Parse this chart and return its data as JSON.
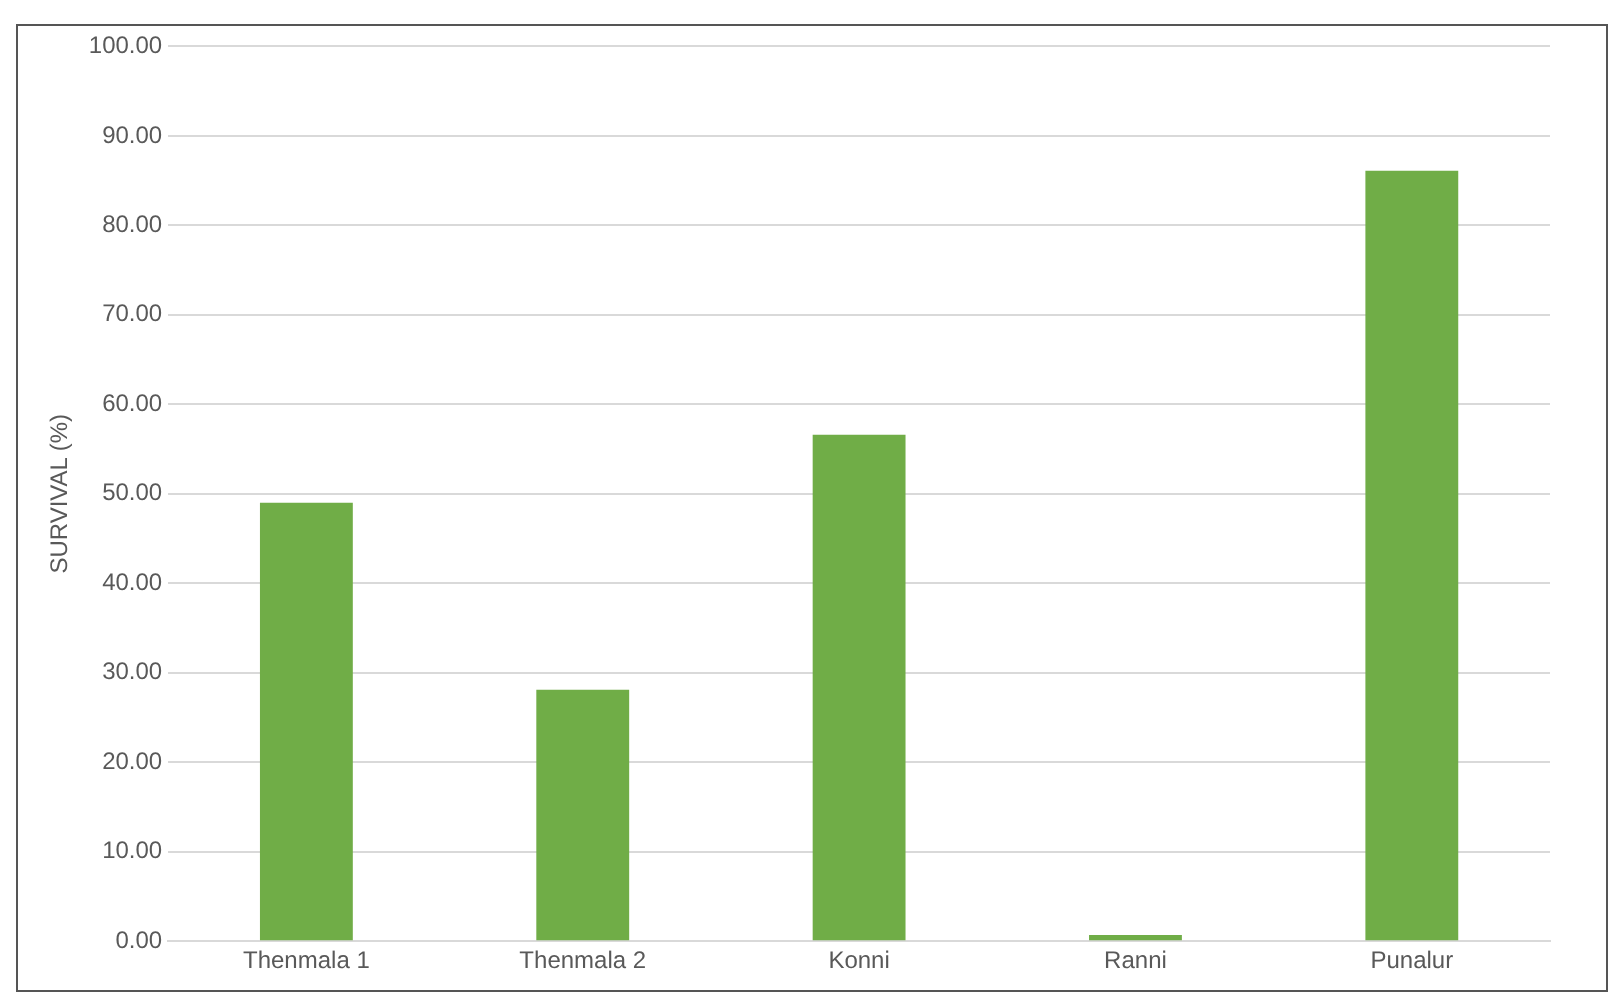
{
  "chart_data": {
    "type": "bar",
    "ylabel": "SURVIVAL (%)",
    "categories": [
      "Thenmala 1",
      "Thenmala 2",
      "Konni",
      "Ranni",
      "Punalur"
    ],
    "values": [
      49.0,
      28.1,
      56.6,
      0.7,
      86.1
    ],
    "color": "#70ad47",
    "ylim": [
      0,
      100
    ],
    "yticks": [
      {
        "value": 0,
        "label": "0.00"
      },
      {
        "value": 10,
        "label": "10.00"
      },
      {
        "value": 20,
        "label": "20.00"
      },
      {
        "value": 30,
        "label": "30.00"
      },
      {
        "value": 40,
        "label": "40.00"
      },
      {
        "value": 50,
        "label": "50.00"
      },
      {
        "value": 60,
        "label": "60.00"
      },
      {
        "value": 70,
        "label": "70.00"
      },
      {
        "value": 80,
        "label": "80.00"
      },
      {
        "value": 90,
        "label": "90.00"
      },
      {
        "value": 100,
        "label": "100.00"
      }
    ],
    "grid": "y"
  }
}
